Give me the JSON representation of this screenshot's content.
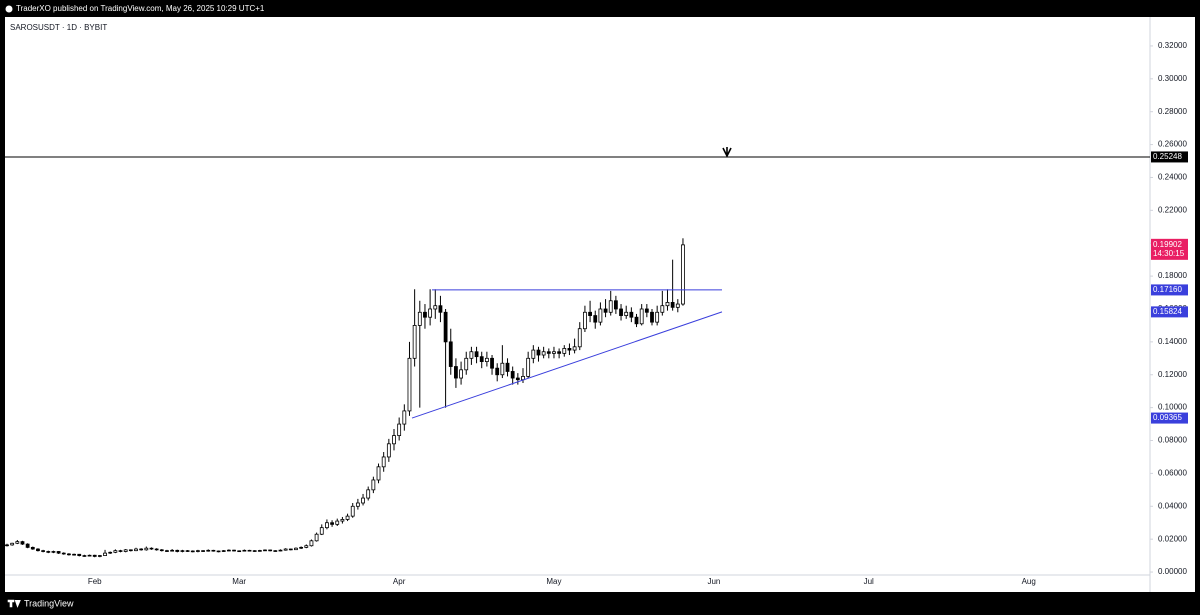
{
  "header": {
    "publisher": "TraderXO published on TradingView.com, May 26, 2025 10:29 UTC+1"
  },
  "footer": {
    "brand": "TradingView"
  },
  "chart_data": {
    "type": "candlestick",
    "title": "SAROSUSDT · 1D · BYBIT",
    "up_color": "#ffffff",
    "down_color": "#000000",
    "edge_color": "#000000",
    "categories": [
      null,
      null,
      null,
      null,
      null,
      null,
      null,
      null,
      null,
      null,
      null,
      null,
      null,
      null,
      null,
      null,
      null,
      "Feb",
      null,
      null,
      null,
      null,
      null,
      null,
      null,
      null,
      null,
      null,
      null,
      null,
      null,
      null,
      null,
      null,
      null,
      null,
      null,
      null,
      null,
      null,
      null,
      null,
      null,
      null,
      null,
      "Mar",
      null,
      null,
      null,
      null,
      null,
      null,
      null,
      null,
      null,
      null,
      null,
      null,
      null,
      null,
      null,
      null,
      null,
      null,
      null,
      null,
      null,
      null,
      null,
      null,
      null,
      null,
      null,
      null,
      null,
      null,
      "Apr",
      null,
      null,
      null,
      null,
      null,
      null,
      null,
      null,
      null,
      null,
      null,
      null,
      null,
      null,
      null,
      null,
      null,
      null,
      null,
      null,
      null,
      null,
      null,
      null,
      null,
      null,
      null,
      null,
      null,
      "May",
      null,
      null,
      null,
      null,
      null,
      null,
      null,
      null,
      null,
      null,
      null,
      null,
      null,
      null,
      null,
      null,
      null,
      null,
      null,
      null,
      null,
      null,
      null,
      null,
      null,
      null,
      null,
      null,
      null,
      null,
      "Jun",
      null,
      null,
      null,
      null,
      null,
      null,
      null,
      null,
      null,
      null,
      null,
      null,
      null,
      null,
      null,
      null,
      null,
      null,
      null,
      null,
      null,
      null,
      null,
      null,
      null,
      null,
      null,
      null,
      null,
      "Jul",
      null,
      null,
      null,
      null,
      null,
      null,
      null,
      null,
      null,
      null,
      null,
      null,
      null,
      null,
      null,
      null,
      null,
      null,
      null,
      null,
      null,
      null,
      null,
      null,
      null,
      null,
      null,
      null,
      null,
      null,
      "Aug",
      null,
      null,
      null,
      null,
      null,
      null,
      null,
      null,
      null,
      null,
      null,
      null,
      null,
      null,
      null,
      null,
      null,
      null,
      null,
      null,
      null,
      null
    ],
    "values": [
      [
        0.016,
        0.0172,
        0.0155,
        0.0165
      ],
      [
        0.0165,
        0.0178,
        0.016,
        0.0175
      ],
      [
        0.0175,
        0.0195,
        0.017,
        0.0185
      ],
      [
        0.0185,
        0.019,
        0.0165,
        0.017
      ],
      [
        0.017,
        0.0175,
        0.0145,
        0.015
      ],
      [
        0.015,
        0.0155,
        0.0135,
        0.014
      ],
      [
        0.014,
        0.0145,
        0.0125,
        0.013
      ],
      [
        0.013,
        0.0135,
        0.012,
        0.0125
      ],
      [
        0.0125,
        0.013,
        0.0115,
        0.012
      ],
      [
        0.012,
        0.013,
        0.0115,
        0.0125
      ],
      [
        0.0125,
        0.0128,
        0.011,
        0.0115
      ],
      [
        0.0115,
        0.012,
        0.0105,
        0.011
      ],
      [
        0.011,
        0.0115,
        0.01,
        0.0105
      ],
      [
        0.0105,
        0.0112,
        0.01,
        0.0108
      ],
      [
        0.0108,
        0.011,
        0.0095,
        0.01
      ],
      [
        0.01,
        0.0105,
        0.0093,
        0.0098
      ],
      [
        0.0098,
        0.0106,
        0.0095,
        0.0102
      ],
      [
        0.0102,
        0.0105,
        0.009,
        0.0095
      ],
      [
        0.0095,
        0.0104,
        0.009,
        0.01
      ],
      [
        0.01,
        0.0135,
        0.0098,
        0.0115
      ],
      [
        0.0115,
        0.0125,
        0.011,
        0.012
      ],
      [
        0.012,
        0.0138,
        0.0115,
        0.013
      ],
      [
        0.013,
        0.0135,
        0.012,
        0.0125
      ],
      [
        0.0125,
        0.014,
        0.012,
        0.0135
      ],
      [
        0.0135,
        0.0138,
        0.0125,
        0.013
      ],
      [
        0.013,
        0.0148,
        0.0127,
        0.014
      ],
      [
        0.014,
        0.0145,
        0.013,
        0.0135
      ],
      [
        0.0135,
        0.0155,
        0.013,
        0.0145
      ],
      [
        0.0145,
        0.015,
        0.0135,
        0.014
      ],
      [
        0.014,
        0.0145,
        0.013,
        0.0135
      ],
      [
        0.0135,
        0.014,
        0.0125,
        0.013
      ],
      [
        0.013,
        0.0135,
        0.0122,
        0.0128
      ],
      [
        0.0128,
        0.014,
        0.0125,
        0.0132
      ],
      [
        0.0132,
        0.0136,
        0.012,
        0.0125
      ],
      [
        0.0125,
        0.0135,
        0.012,
        0.013
      ],
      [
        0.013,
        0.0134,
        0.0122,
        0.0128
      ],
      [
        0.0128,
        0.0132,
        0.012,
        0.0125
      ],
      [
        0.0125,
        0.0135,
        0.012,
        0.013
      ],
      [
        0.013,
        0.0133,
        0.0122,
        0.0127
      ],
      [
        0.0127,
        0.0138,
        0.0124,
        0.0132
      ],
      [
        0.0132,
        0.0135,
        0.0124,
        0.0128
      ],
      [
        0.0128,
        0.0131,
        0.012,
        0.0125
      ],
      [
        0.0125,
        0.0134,
        0.0122,
        0.013
      ],
      [
        0.013,
        0.0138,
        0.0127,
        0.0133
      ],
      [
        0.0133,
        0.0136,
        0.0125,
        0.0129
      ],
      [
        0.0129,
        0.0132,
        0.0124,
        0.0128
      ],
      [
        0.0128,
        0.0137,
        0.0125,
        0.0132
      ],
      [
        0.0132,
        0.0135,
        0.0126,
        0.013
      ],
      [
        0.013,
        0.0133,
        0.0123,
        0.0127
      ],
      [
        0.0127,
        0.0135,
        0.0124,
        0.0131
      ],
      [
        0.0131,
        0.0138,
        0.0128,
        0.0134
      ],
      [
        0.0134,
        0.0137,
        0.0126,
        0.013
      ],
      [
        0.013,
        0.0133,
        0.0124,
        0.0128
      ],
      [
        0.0128,
        0.0138,
        0.0126,
        0.0133
      ],
      [
        0.0133,
        0.0145,
        0.013,
        0.014
      ],
      [
        0.014,
        0.0143,
        0.0132,
        0.0136
      ],
      [
        0.0136,
        0.015,
        0.0134,
        0.0145
      ],
      [
        0.0145,
        0.0156,
        0.014,
        0.015
      ],
      [
        0.015,
        0.0168,
        0.0145,
        0.016
      ],
      [
        0.016,
        0.0198,
        0.0155,
        0.019
      ],
      [
        0.019,
        0.024,
        0.0185,
        0.023
      ],
      [
        0.023,
        0.029,
        0.0225,
        0.027
      ],
      [
        0.027,
        0.032,
        0.026,
        0.03
      ],
      [
        0.03,
        0.0315,
        0.0275,
        0.029
      ],
      [
        0.029,
        0.0325,
        0.028,
        0.031
      ],
      [
        0.031,
        0.0335,
        0.0295,
        0.032
      ],
      [
        0.032,
        0.0355,
        0.031,
        0.034
      ],
      [
        0.034,
        0.042,
        0.033,
        0.04
      ],
      [
        0.04,
        0.0445,
        0.038,
        0.042
      ],
      [
        0.042,
        0.0475,
        0.0405,
        0.045
      ],
      [
        0.045,
        0.052,
        0.0435,
        0.05
      ],
      [
        0.05,
        0.058,
        0.048,
        0.056
      ],
      [
        0.056,
        0.066,
        0.054,
        0.064
      ],
      [
        0.064,
        0.073,
        0.061,
        0.07
      ],
      [
        0.07,
        0.081,
        0.067,
        0.078
      ],
      [
        0.078,
        0.087,
        0.074,
        0.083
      ],
      [
        0.083,
        0.094,
        0.08,
        0.09
      ],
      [
        0.09,
        0.102,
        0.086,
        0.098
      ],
      [
        0.098,
        0.14,
        0.095,
        0.13
      ],
      [
        0.13,
        0.172,
        0.125,
        0.15
      ],
      [
        0.15,
        0.165,
        0.1,
        0.158
      ],
      [
        0.158,
        0.163,
        0.148,
        0.155
      ],
      [
        0.155,
        0.172,
        0.15,
        0.16
      ],
      [
        0.16,
        0.172,
        0.154,
        0.162
      ],
      [
        0.162,
        0.168,
        0.152,
        0.158
      ],
      [
        0.158,
        0.16,
        0.1,
        0.14
      ],
      [
        0.14,
        0.148,
        0.12,
        0.125
      ],
      [
        0.125,
        0.13,
        0.112,
        0.118
      ],
      [
        0.118,
        0.128,
        0.114,
        0.123
      ],
      [
        0.123,
        0.134,
        0.12,
        0.13
      ],
      [
        0.13,
        0.137,
        0.126,
        0.134
      ],
      [
        0.134,
        0.137,
        0.127,
        0.131
      ],
      [
        0.131,
        0.134,
        0.124,
        0.128
      ],
      [
        0.128,
        0.134,
        0.125,
        0.13
      ],
      [
        0.13,
        0.132,
        0.12,
        0.124
      ],
      [
        0.124,
        0.127,
        0.116,
        0.12
      ],
      [
        0.12,
        0.138,
        0.118,
        0.127
      ],
      [
        0.127,
        0.13,
        0.119,
        0.122
      ],
      [
        0.122,
        0.125,
        0.114,
        0.118
      ],
      [
        0.118,
        0.121,
        0.114,
        0.117
      ],
      [
        0.117,
        0.124,
        0.115,
        0.119
      ],
      [
        0.119,
        0.134,
        0.118,
        0.13
      ],
      [
        0.13,
        0.138,
        0.127,
        0.135
      ],
      [
        0.135,
        0.137,
        0.128,
        0.132
      ],
      [
        0.132,
        0.137,
        0.13,
        0.134
      ],
      [
        0.134,
        0.136,
        0.13,
        0.133
      ],
      [
        0.133,
        0.137,
        0.13,
        0.134
      ],
      [
        0.134,
        0.136,
        0.13,
        0.133
      ],
      [
        0.133,
        0.138,
        0.131,
        0.136
      ],
      [
        0.136,
        0.139,
        0.132,
        0.135
      ],
      [
        0.135,
        0.142,
        0.133,
        0.137
      ],
      [
        0.137,
        0.152,
        0.135,
        0.148
      ],
      [
        0.148,
        0.162,
        0.146,
        0.158
      ],
      [
        0.158,
        0.165,
        0.152,
        0.156
      ],
      [
        0.156,
        0.159,
        0.148,
        0.152
      ],
      [
        0.152,
        0.164,
        0.15,
        0.16
      ],
      [
        0.16,
        0.166,
        0.155,
        0.158
      ],
      [
        0.158,
        0.171,
        0.156,
        0.165
      ],
      [
        0.165,
        0.168,
        0.157,
        0.16
      ],
      [
        0.16,
        0.163,
        0.153,
        0.156
      ],
      [
        0.156,
        0.162,
        0.154,
        0.158
      ],
      [
        0.158,
        0.161,
        0.152,
        0.155
      ],
      [
        0.155,
        0.157,
        0.149,
        0.151
      ],
      [
        0.151,
        0.163,
        0.15,
        0.16
      ],
      [
        0.16,
        0.163,
        0.155,
        0.158
      ],
      [
        0.158,
        0.16,
        0.15,
        0.152
      ],
      [
        0.152,
        0.162,
        0.15,
        0.158
      ],
      [
        0.158,
        0.171,
        0.156,
        0.162
      ],
      [
        0.162,
        0.172,
        0.159,
        0.164
      ],
      [
        0.164,
        0.19,
        0.159,
        0.161
      ],
      [
        0.161,
        0.166,
        0.158,
        0.163
      ],
      [
        0.163,
        0.203,
        0.162,
        0.199
      ],
      null,
      null,
      null,
      null,
      null,
      null,
      null,
      null,
      null,
      null,
      null,
      null,
      null,
      null,
      null,
      null,
      null,
      null,
      null,
      null,
      null,
      null,
      null,
      null,
      null,
      null,
      null,
      null,
      null,
      null,
      null,
      null,
      null,
      null,
      null,
      null,
      null,
      null,
      null,
      null,
      null,
      null,
      null,
      null,
      null,
      null,
      null,
      null,
      null,
      null,
      null,
      null,
      null,
      null,
      null,
      null,
      null,
      null,
      null,
      null,
      null,
      null,
      null,
      null,
      null,
      null,
      null,
      null,
      null,
      null,
      null,
      null,
      null,
      null,
      null,
      null,
      null,
      null,
      null,
      null,
      null,
      null,
      null,
      null,
      null,
      null,
      null,
      null,
      null
    ],
    "ylim": [
      -0.0018,
      0.3376
    ],
    "yticks": [
      {
        "value": 0,
        "label": "0.00000"
      },
      {
        "value": 0.02,
        "label": "0.02000"
      },
      {
        "value": 0.04,
        "label": "0.04000"
      },
      {
        "value": 0.06,
        "label": "0.06000"
      },
      {
        "value": 0.08,
        "label": "0.08000"
      },
      {
        "value": 0.1,
        "label": "0.10000"
      },
      {
        "value": 0.12,
        "label": "0.12000"
      },
      {
        "value": 0.14,
        "label": "0.14000"
      },
      {
        "value": 0.16,
        "label": "0.16000"
      },
      {
        "value": 0.18,
        "label": "0.18000"
      },
      {
        "value": 0.2,
        "label": "0.20000"
      },
      {
        "value": 0.22,
        "label": "0.22000"
      },
      {
        "value": 0.24,
        "label": "0.24000"
      },
      {
        "value": 0.26,
        "label": "0.26000"
      },
      {
        "value": 0.28,
        "label": "0.28000"
      },
      {
        "value": 0.3,
        "label": "0.30000"
      },
      {
        "value": 0.32,
        "label": "0.32000"
      }
    ],
    "level": {
      "value": 0.25248,
      "color": "#000000"
    },
    "triangle": {
      "resistance": {
        "value": 0.1716,
        "label": "0.17160"
      },
      "support": [
        0.09365,
        0.15824
      ],
      "color": "#3a3fdc"
    },
    "last_price": {
      "value": 0.19902,
      "countdown": "14:30:15",
      "color": "#e91e63"
    }
  }
}
